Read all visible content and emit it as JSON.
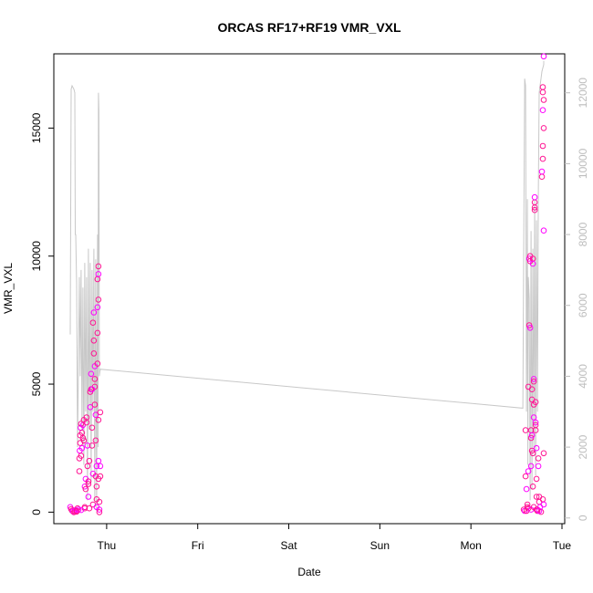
{
  "chart_data": {
    "type": "scatter",
    "title": "ORCAS RF17+RF19 VMR_VXL",
    "xlabel": "Date",
    "ylabel": "VMR_VXL",
    "x_ticks": [
      "Thu",
      "Fri",
      "Sat",
      "Sun",
      "Mon",
      "Tue"
    ],
    "y_ticks": [
      0,
      5000,
      10000,
      15000
    ],
    "y2_ticks": [
      0,
      2000,
      4000,
      6000,
      8000,
      10000,
      12000
    ],
    "xlim_days": [
      -0.58,
      5.03
    ],
    "ylim": [
      -450,
      17900
    ],
    "y2lim": [
      -160,
      13100
    ],
    "grid": false,
    "colors": {
      "points": "#ff1493",
      "points_alt": "#ff00ff",
      "secondary_line": "#c8c8c8",
      "axis": "#000000",
      "secondary_axis": "#bdbdbd"
    },
    "series": [
      {
        "role": "points",
        "values": [
          [
            -0.4,
            200
          ],
          [
            -0.39,
            120
          ],
          [
            -0.38,
            60
          ],
          [
            -0.37,
            30
          ],
          [
            -0.36,
            0
          ],
          [
            -0.35,
            40
          ],
          [
            -0.34,
            80
          ],
          [
            -0.33,
            20
          ],
          [
            -0.32,
            150
          ],
          [
            -0.31,
            100
          ],
          [
            -0.3,
            1600
          ],
          [
            -0.3,
            2100
          ],
          [
            -0.295,
            2400
          ],
          [
            -0.29,
            2700
          ],
          [
            -0.29,
            3000
          ],
          [
            -0.285,
            3300
          ],
          [
            -0.28,
            3450
          ],
          [
            -0.28,
            2200
          ],
          [
            -0.27,
            2500
          ],
          [
            -0.27,
            3100
          ],
          [
            -0.26,
            2900
          ],
          [
            -0.26,
            3400
          ],
          [
            -0.25,
            3600
          ],
          [
            -0.25,
            2800
          ],
          [
            -0.24,
            1000
          ],
          [
            -0.24,
            200
          ],
          [
            -0.23,
            900
          ],
          [
            -0.23,
            1300
          ],
          [
            -0.22,
            3500
          ],
          [
            -0.22,
            3700
          ],
          [
            -0.21,
            2600
          ],
          [
            -0.21,
            1800
          ],
          [
            -0.2,
            1200
          ],
          [
            -0.2,
            600
          ],
          [
            -0.19,
            150
          ],
          [
            -0.19,
            2000
          ],
          [
            -0.18,
            4100
          ],
          [
            -0.18,
            4700
          ],
          [
            -0.17,
            4800
          ],
          [
            -0.17,
            5400
          ],
          [
            -0.16,
            3300
          ],
          [
            -0.16,
            2600
          ],
          [
            -0.15,
            1500
          ],
          [
            -0.15,
            300
          ],
          [
            -0.15,
            7400
          ],
          [
            -0.14,
            7800
          ],
          [
            -0.14,
            6700
          ],
          [
            -0.14,
            6200
          ],
          [
            -0.13,
            5700
          ],
          [
            -0.13,
            5200
          ],
          [
            -0.13,
            4900
          ],
          [
            -0.12,
            3800
          ],
          [
            -0.12,
            2800
          ],
          [
            -0.12,
            1400
          ],
          [
            -0.11,
            1800
          ],
          [
            -0.11,
            1000
          ],
          [
            -0.11,
            500
          ],
          [
            -0.11,
            200
          ],
          [
            -0.1,
            5800
          ],
          [
            -0.1,
            7000
          ],
          [
            -0.1,
            8000
          ],
          [
            -0.1,
            9100
          ],
          [
            -0.09,
            9600
          ],
          [
            -0.09,
            9300
          ],
          [
            -0.09,
            8300
          ],
          [
            -0.09,
            3600
          ],
          [
            -0.09,
            2000
          ],
          [
            -0.09,
            1300
          ],
          [
            -0.08,
            400
          ],
          [
            -0.08,
            100
          ],
          [
            -0.08,
            0
          ],
          [
            -0.07,
            3900
          ],
          [
            -0.07,
            1800
          ],
          [
            -0.07,
            1400
          ],
          [
            -0.13,
            4200
          ],
          [
            -0.16,
            4800
          ],
          [
            -0.2,
            1100
          ],
          [
            -0.24,
            150
          ],
          [
            -0.28,
            80
          ],
          [
            -0.33,
            50
          ],
          [
            4.58,
            100
          ],
          [
            4.59,
            50
          ],
          [
            4.6,
            1400
          ],
          [
            4.6,
            3200
          ],
          [
            4.61,
            900
          ],
          [
            4.62,
            300
          ],
          [
            4.62,
            200
          ],
          [
            4.63,
            1600
          ],
          [
            4.63,
            4900
          ],
          [
            4.64,
            7300
          ],
          [
            4.64,
            9900
          ],
          [
            4.65,
            10000
          ],
          [
            4.65,
            9800
          ],
          [
            4.65,
            7200
          ],
          [
            4.66,
            3200
          ],
          [
            4.66,
            2900
          ],
          [
            4.66,
            1800
          ],
          [
            4.67,
            4800
          ],
          [
            4.67,
            4400
          ],
          [
            4.67,
            3000
          ],
          [
            4.67,
            2400
          ],
          [
            4.68,
            9900
          ],
          [
            4.68,
            9700
          ],
          [
            4.68,
            2300
          ],
          [
            4.68,
            1000
          ],
          [
            4.69,
            5200
          ],
          [
            4.69,
            5100
          ],
          [
            4.69,
            4200
          ],
          [
            4.69,
            3700
          ],
          [
            4.7,
            11800
          ],
          [
            4.7,
            12100
          ],
          [
            4.7,
            12300
          ],
          [
            4.7,
            11900
          ],
          [
            4.71,
            4300
          ],
          [
            4.71,
            3500
          ],
          [
            4.71,
            3400
          ],
          [
            4.71,
            3200
          ],
          [
            4.72,
            2500
          ],
          [
            4.72,
            1300
          ],
          [
            4.72,
            600
          ],
          [
            4.73,
            100
          ],
          [
            4.73,
            50
          ],
          [
            4.74,
            2100
          ],
          [
            4.74,
            1800
          ],
          [
            4.75,
            600
          ],
          [
            4.75,
            400
          ],
          [
            4.76,
            200
          ],
          [
            4.77,
            10
          ],
          [
            4.78,
            13100
          ],
          [
            4.78,
            13300
          ],
          [
            4.79,
            16600
          ],
          [
            4.79,
            16400
          ],
          [
            4.79,
            15700
          ],
          [
            4.79,
            14300
          ],
          [
            4.79,
            13800
          ],
          [
            4.8,
            17800
          ],
          [
            4.8,
            16100
          ],
          [
            4.8,
            15000
          ],
          [
            4.8,
            11000
          ],
          [
            4.8,
            2300
          ],
          [
            4.79,
            500
          ],
          [
            4.8,
            300
          ],
          [
            4.61,
            50
          ],
          [
            4.63,
            150
          ],
          [
            4.66,
            100
          ],
          [
            4.69,
            200
          ],
          [
            4.72,
            100
          ],
          [
            4.75,
            50
          ]
        ]
      },
      {
        "role": "secondary_line",
        "values": [
          [
            -0.4,
            5180
          ],
          [
            -0.39,
            12100
          ],
          [
            -0.38,
            12200
          ],
          [
            -0.36,
            12100
          ],
          [
            -0.35,
            12000
          ],
          [
            -0.345,
            8000
          ],
          [
            -0.34,
            8000
          ],
          [
            -0.33,
            6600
          ],
          [
            -0.32,
            2000
          ],
          [
            -0.3,
            6800
          ],
          [
            -0.29,
            4000
          ],
          [
            -0.28,
            7000
          ],
          [
            -0.27,
            2500
          ],
          [
            -0.26,
            6500
          ],
          [
            -0.25,
            1500
          ],
          [
            -0.24,
            7200
          ],
          [
            -0.23,
            3000
          ],
          [
            -0.22,
            6800
          ],
          [
            -0.21,
            500
          ],
          [
            -0.2,
            7600
          ],
          [
            -0.19,
            2500
          ],
          [
            -0.18,
            7200
          ],
          [
            -0.17,
            1000
          ],
          [
            -0.16,
            7000
          ],
          [
            -0.15,
            3000
          ],
          [
            -0.14,
            7600
          ],
          [
            -0.13,
            500
          ],
          [
            -0.12,
            7300
          ],
          [
            -0.11,
            200
          ],
          [
            -0.1,
            8000
          ],
          [
            -0.095,
            2000
          ],
          [
            -0.09,
            12000
          ],
          [
            -0.085,
            11500
          ],
          [
            -0.08,
            4000
          ],
          [
            -0.07,
            4200
          ],
          [
            4.57,
            3100
          ],
          [
            4.58,
            7800
          ],
          [
            4.59,
            12400
          ],
          [
            4.6,
            12200
          ],
          [
            4.61,
            3000
          ],
          [
            4.62,
            9000
          ],
          [
            4.625,
            1500
          ],
          [
            4.63,
            6800
          ],
          [
            4.64,
            6200
          ],
          [
            4.65,
            500
          ],
          [
            4.66,
            8100
          ],
          [
            4.67,
            800
          ],
          [
            4.68,
            7600
          ],
          [
            4.69,
            2000
          ],
          [
            4.7,
            9000
          ],
          [
            4.71,
            1200
          ],
          [
            4.72,
            8400
          ],
          [
            4.73,
            3000
          ],
          [
            4.74,
            9200
          ],
          [
            4.75,
            12000
          ],
          [
            4.77,
            12400
          ],
          [
            4.78,
            12600
          ],
          [
            4.79,
            12700
          ],
          [
            4.8,
            12800
          ],
          [
            4.8,
            12900
          ]
        ]
      }
    ]
  }
}
